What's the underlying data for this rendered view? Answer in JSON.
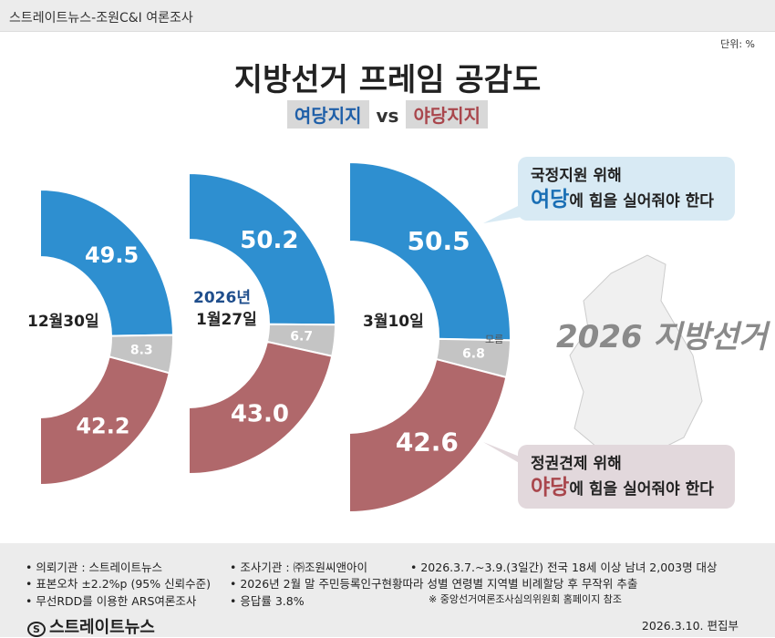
{
  "header": {
    "source": "스트레이트뉴스-조원C&I 여론조사",
    "unit": "단위: %"
  },
  "title": "지방선거 프레임 공감도",
  "subtitle": {
    "a": "여당지지",
    "vs": "vs",
    "b": "야당지지"
  },
  "colors": {
    "ruling": "#2e8fd0",
    "opposition": "#b0686b",
    "unknown": "#c4c4c4"
  },
  "chart_data": {
    "type": "semi-donut",
    "categories": [
      "12월30일",
      "2026년 1월27일",
      "3월10일"
    ],
    "series": [
      {
        "name": "여당",
        "values": [
          49.5,
          50.2,
          50.5
        ]
      },
      {
        "name": "모름",
        "values": [
          8.3,
          6.7,
          6.8
        ]
      },
      {
        "name": "야당",
        "values": [
          42.2,
          43.0,
          42.6
        ]
      }
    ]
  },
  "labels": {
    "c1": "12월30일",
    "c2y": "2026년",
    "c2": "1월27일",
    "c3": "3월10일",
    "unknown": "모름"
  },
  "bubbles": {
    "ruling": {
      "line1": "국정지원 위해",
      "party": "여당",
      "rest": "에 힘을 실어줘야 한다"
    },
    "opp": {
      "line1": "정권견제 위해",
      "party": "야당",
      "rest": "에 힘을 실어줘야 한다"
    }
  },
  "map_text": "2026 지방선거",
  "footer": {
    "l1a": "• 의뢰기관 : 스트레이트뉴스",
    "l1b": "• 조사기관 : ㈜조원씨앤아이",
    "l1c": "• 2026.3.7.~3.9.(3일간) 전국 18세 이상 남녀 2,003명 대상",
    "l2a": "• 표본오차 ±2.2%p (95% 신뢰수준)",
    "l2b": "• 2026년 2월 말 주민등록인구현황따라 성별 연령별 지역별 비례할당 후 무작위 추출",
    "l3a": "• 무선RDD를 이용한 ARS여론조사",
    "l3b": "• 응답률 3.8%",
    "l3c": "※ 중앙선거여론조사심의위원회 홈페이지 참조",
    "logo": "스트레이트뉴스",
    "date": "2026.3.10.  편집부"
  }
}
